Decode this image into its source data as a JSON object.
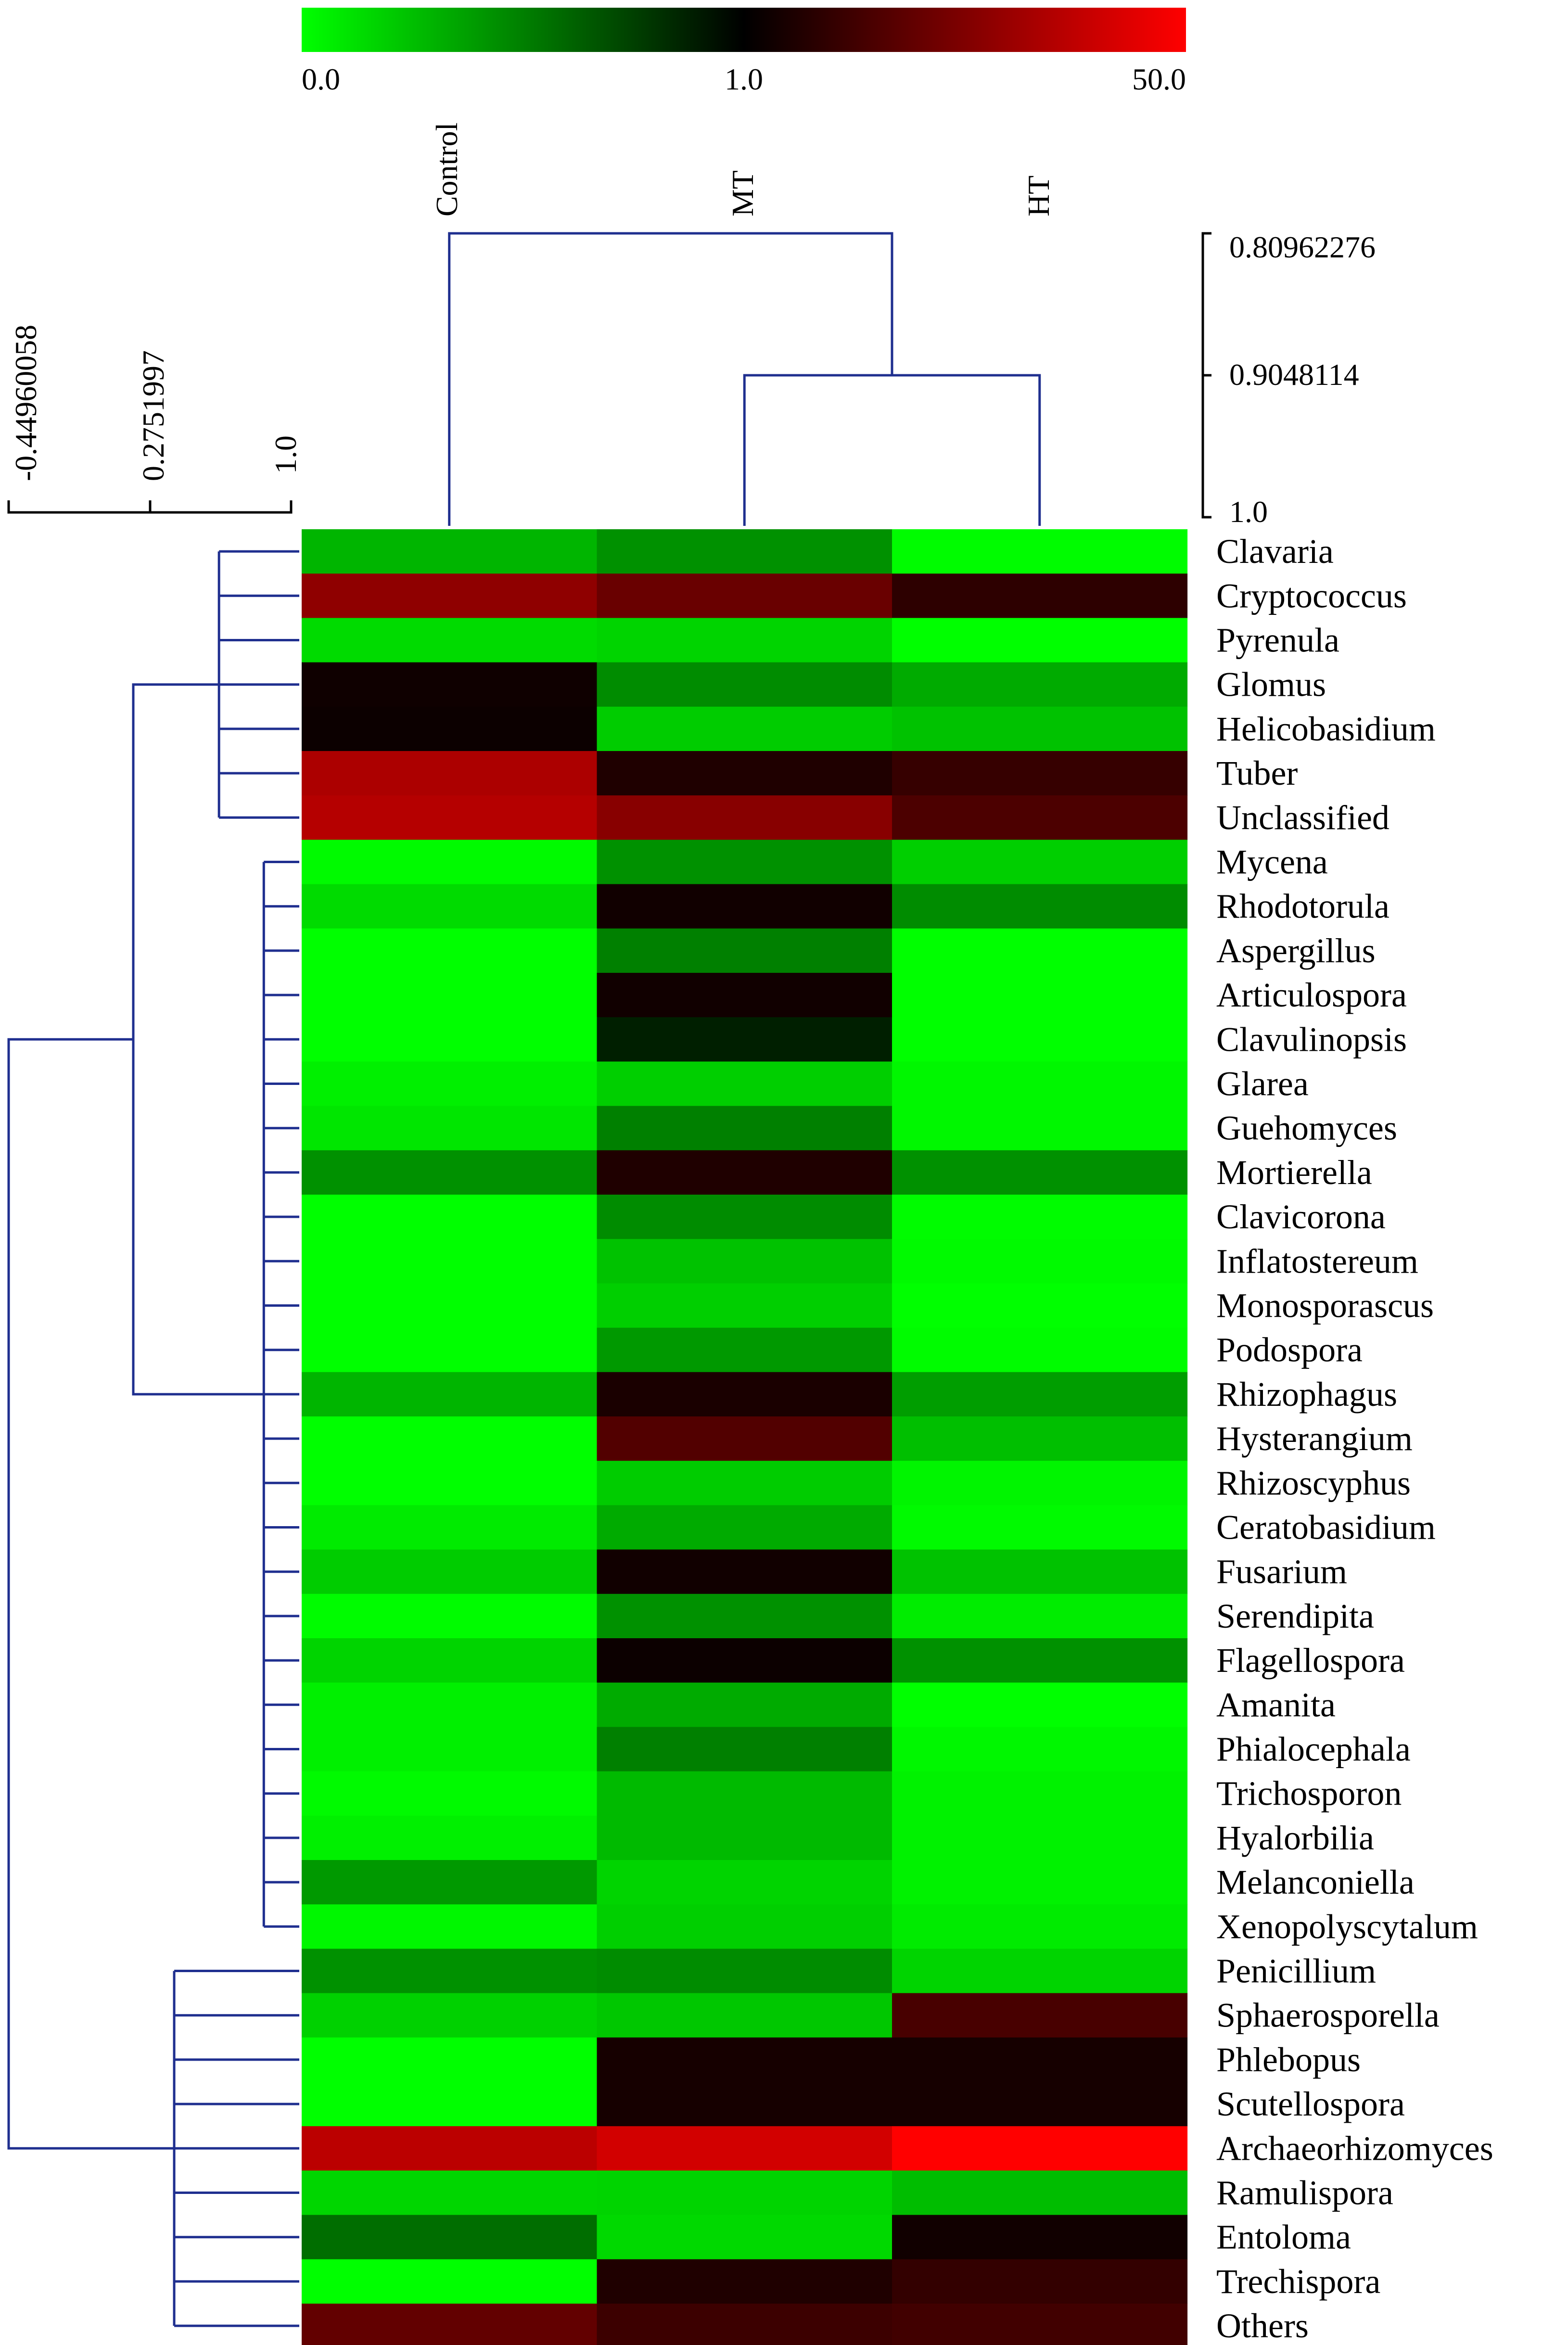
{
  "colors": {
    "low": "#00ff00",
    "mid": "#000000",
    "high": "#ff0000",
    "dendrogram": "#1f2f8f",
    "axis": "#000000"
  },
  "chart_data": {
    "type": "heatmap",
    "title": "",
    "color_scale": {
      "stops": [
        0.0,
        1.0,
        50.0
      ],
      "labels": [
        "0.0",
        "1.0",
        "50.0"
      ]
    },
    "columns": [
      "Control",
      "MT",
      "HT"
    ],
    "rows": [
      "Clavaria",
      "Cryptococcus",
      "Pyrenula",
      "Glomus",
      "Helicobasidium",
      "Tuber",
      "Unclassified",
      "Mycena",
      "Rhodotorula",
      "Aspergillus",
      "Articulospora",
      "Clavulinopsis",
      "Glarea",
      "Guehomyces",
      "Mortierella",
      "Clavicorona",
      "Inflatostereum",
      "Monosporascus",
      "Podospora",
      "Rhizophagus",
      "Hysterangium",
      "Rhizoscyphus",
      "Ceratobasidium",
      "Fusarium",
      "Serendipita",
      "Flagellospora",
      "Amanita",
      "Phialocephala",
      "Trichosporon",
      "Hyalorbilia",
      "Melanconiella",
      "Xenopolyscytalum",
      "Penicillium",
      "Sphaerosporella",
      "Phlebopus",
      "Scutellospora",
      "Archaeorhizomyces",
      "Ramulispora",
      "Entoloma",
      "Trechispora",
      "Others"
    ],
    "values": [
      [
        0.29,
        0.43,
        0.01
      ],
      [
        9.0,
        5.0,
        2.0
      ],
      [
        0.14,
        0.17,
        0.0
      ],
      [
        1.25,
        0.45,
        0.33
      ],
      [
        1.2,
        0.2,
        0.24
      ],
      [
        14.0,
        1.6,
        2.3
      ],
      [
        16.0,
        8.0,
        3.2
      ],
      [
        0.02,
        0.43,
        0.19
      ],
      [
        0.14,
        1.3,
        0.45
      ],
      [
        0.0,
        0.5,
        0.0
      ],
      [
        0.0,
        1.3,
        0.0
      ],
      [
        0.0,
        0.88,
        0.0
      ],
      [
        0.06,
        0.19,
        0.03
      ],
      [
        0.1,
        0.5,
        0.03
      ],
      [
        0.43,
        1.6,
        0.43
      ],
      [
        0.0,
        0.45,
        0.01
      ],
      [
        0.0,
        0.24,
        0.02
      ],
      [
        0.0,
        0.19,
        0.0
      ],
      [
        0.0,
        0.4,
        0.01
      ],
      [
        0.29,
        1.5,
        0.38
      ],
      [
        0.0,
        3.5,
        0.25
      ],
      [
        0.0,
        0.2,
        0.04
      ],
      [
        0.08,
        0.33,
        0.02
      ],
      [
        0.2,
        1.3,
        0.24
      ],
      [
        0.01,
        0.43,
        0.07
      ],
      [
        0.17,
        1.2,
        0.43
      ],
      [
        0.06,
        0.33,
        0.0
      ],
      [
        0.06,
        0.5,
        0.03
      ],
      [
        0.02,
        0.27,
        0.05
      ],
      [
        0.06,
        0.27,
        0.05
      ],
      [
        0.4,
        0.17,
        0.05
      ],
      [
        0.03,
        0.19,
        0.08
      ],
      [
        0.43,
        0.45,
        0.17
      ],
      [
        0.18,
        0.22,
        3.0
      ],
      [
        0.0,
        1.4,
        1.4
      ],
      [
        0.0,
        1.4,
        1.4
      ],
      [
        17.5,
        25.0,
        50.0
      ],
      [
        0.16,
        0.17,
        0.26
      ],
      [
        0.57,
        0.15,
        1.3
      ],
      [
        0.0,
        1.6,
        2.2
      ],
      [
        4.5,
        2.5,
        2.7
      ]
    ],
    "column_dendrogram_scale": {
      "tick_labels": [
        "0.80962276",
        "0.9048114",
        "1.0"
      ],
      "range": [
        0.80962276,
        1.0
      ],
      "merges": [
        {
          "members": [
            "MT",
            "HT"
          ],
          "height": 0.9048114
        },
        {
          "members": [
            "Control",
            "MT+HT"
          ],
          "height": 0.80962276
        }
      ]
    },
    "row_dendrogram_scale": {
      "tick_labels": [
        "-0.44960058",
        "0.2751997",
        "1.0"
      ],
      "range": [
        -0.44960058,
        1.0
      ],
      "groups": [
        {
          "members": [
            "Clavaria",
            "Cryptococcus",
            "Pyrenula",
            "Glomus",
            "Helicobasidium",
            "Tuber",
            "Unclassified"
          ],
          "height": 0.63
        },
        {
          "members": [
            "Mycena",
            "Rhodotorula",
            "Aspergillus",
            "Articulospora",
            "Clavulinopsis",
            "Glarea",
            "Guehomyces",
            "Mortierella",
            "Clavicorona",
            "Inflatostereum",
            "Monosporascus",
            "Podospora",
            "Rhizophagus",
            "Hysterangium",
            "Rhizoscyphus",
            "Ceratobasidium",
            "Fusarium",
            "Serendipita",
            "Flagellospora",
            "Amanita",
            "Phialocephala",
            "Trichosporon",
            "Hyalorbilia",
            "Melanconiella",
            "Xenopolyscytalum"
          ],
          "height": 0.86
        },
        {
          "members": [
            "Penicillium",
            "Sphaerosporella",
            "Phlebopus",
            "Scutellospora",
            "Archaeorhizomyces",
            "Ramulispora",
            "Entoloma",
            "Trechispora",
            "Others"
          ],
          "height": 0.4
        }
      ],
      "root_height": -0.44960058
    }
  }
}
